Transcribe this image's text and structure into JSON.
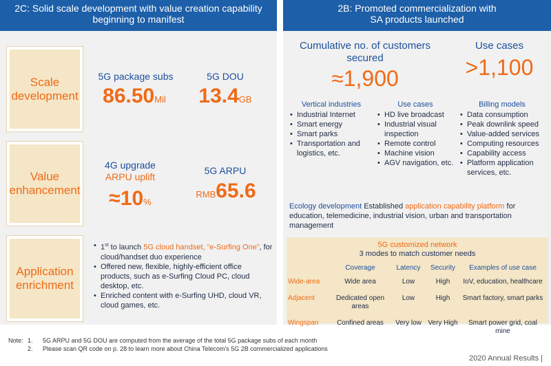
{
  "left_header": {
    "line1": "2C: Solid scale development with value creation capability",
    "line2": "beginning to manifest"
  },
  "right_header": {
    "line1": "2B: Promoted commercialization with",
    "line2": "SA products launched"
  },
  "scale": {
    "label_line1": "Scale",
    "label_line2": "development",
    "m1_label": "5G package subs",
    "m1_value": "86.50",
    "m1_unit": "Mil",
    "m2_label": "5G DOU",
    "m2_value": "13.4",
    "m2_unit": "GB"
  },
  "value": {
    "label_line1": "Value",
    "label_line2": "enhancement",
    "m1_label_line1": "4G upgrade",
    "m1_label_line2": "ARPU uplift",
    "m1_value": "≈10",
    "m1_unit": "%",
    "m2_label": "5G ARPU",
    "m2_prefix": "RMB",
    "m2_value": "65.6"
  },
  "app": {
    "label_line1": "Application",
    "label_line2": "enrichment",
    "b1_pre": "1",
    "b1_sup": "st",
    "b1_mid": " to launch ",
    "b1_hl": "5G cloud handset, “e-Surfing One”",
    "b1_post": ",  for cloud/handset duo experience",
    "b2": "Offered new, flexible, highly-efficient office products, such as e-Surfing Cloud PC, cloud desktop, etc.",
    "b3": "Enriched content with e-Surfing UHD, cloud VR, cloud games, etc."
  },
  "customers": {
    "label_line1": "Cumulative no. of customers",
    "label_line2": "secured",
    "value": "≈1,900"
  },
  "usecases_top": {
    "label": "Use cases",
    "value": ">1,100"
  },
  "vertical": {
    "title": "Vertical industries",
    "items": [
      "Industrial Internet",
      "Smart energy",
      "Smart parks",
      "Transportation and logistics, etc."
    ]
  },
  "usecases": {
    "title": "Use cases",
    "items": [
      "HD live broadcast",
      "Industrial visual inspection",
      "Remote control",
      "Machine vision",
      "AGV navigation, etc."
    ]
  },
  "billing": {
    "title": "Billing models",
    "items": [
      "Data consumption",
      "Peak downlink speed",
      "Value-added services",
      "Computing resources",
      "Capability access",
      "Platform application services, etc."
    ]
  },
  "ecology": {
    "lead": "Ecology development",
    "pre": " Established ",
    "hl": "application capability platform",
    "post": " for education, telemedicine, industrial vision, urban and transportation management"
  },
  "network": {
    "title": "5G customized network",
    "subtitle": "3 modes to match customer needs",
    "columns": [
      "Coverage",
      "Latency",
      "Security",
      "Examples of use case"
    ],
    "rows": [
      {
        "mode": "Wide-area",
        "coverage": "Wide area",
        "latency": "Low",
        "security": "High",
        "example": "IoV, education, healthcare"
      },
      {
        "mode": "Adjacent",
        "coverage": "Dedicated open areas",
        "latency": "Low",
        "security": "High",
        "example": "Smart factory, smart parks"
      },
      {
        "mode": "Wingspan",
        "coverage": "Confined areas",
        "latency": "Very low",
        "security": "Very High",
        "example": "Smart power grid, coal mine"
      }
    ]
  },
  "notes": {
    "prefix": "Note:",
    "n1_num": "1.",
    "n1": "5G ARPU and 5G DOU are computed from the average of the total 5G package subs of each month",
    "n2_num": "2.",
    "n2": "Please scan QR code on p. 28 to learn more about China Telecom's 5G 2B commercialized applications"
  },
  "footer": "2020 Annual Results |"
}
